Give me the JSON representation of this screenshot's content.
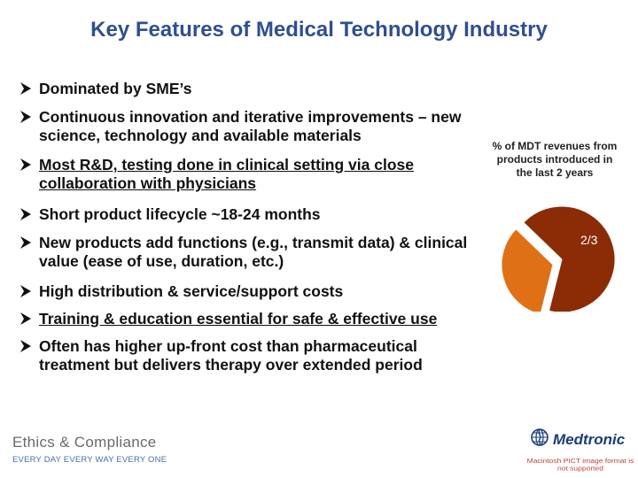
{
  "slide": {
    "title": "Key Features of Medical Technology Industry",
    "bullets": [
      {
        "text": "Dominated by SME’s",
        "underlined": false
      },
      {
        "text": "Continuous innovation and iterative improvements – new science, technology and available materials",
        "underlined": false
      },
      {
        "text": "Most R&D, testing done in clinical setting via close collaboration with physicians",
        "underlined": true
      },
      {
        "text": "Short product lifecycle ~18-24 months",
        "underlined": false
      },
      {
        "text": "New products add functions (e.g., transmit data) & clinical value (ease of use, duration, etc.)",
        "underlined": false
      },
      {
        "text": "High distribution & service/support costs",
        "underlined": false
      },
      {
        "text": "Training & education essential for safe & effective use",
        "underlined": true
      },
      {
        "text": "Often has higher up-front cost than pharmaceutical treatment but delivers therapy over extended period",
        "underlined": false
      }
    ],
    "bullet_icon": "arrowhead-bullet-icon"
  },
  "pie": {
    "caption": "% of MDT revenues from products introduced in the last 2 years",
    "label": "2/3",
    "new_products_fraction": 0.6667,
    "colors": {
      "major": "#8b2c07",
      "minor": "#e07015",
      "label": "#ffffff"
    }
  },
  "footer": {
    "ethics_title": "Ethics & Compliance",
    "ethics_tagline": "EVERY DAY EVERY WAY EVERY ONE",
    "brand_name": "Medtronic",
    "brand_icon": "medtronic-globe-icon",
    "unsupported_notice": "Macintosh PICT image format is not supported"
  },
  "colors": {
    "title": "#2f4f8f",
    "text": "#111111"
  }
}
